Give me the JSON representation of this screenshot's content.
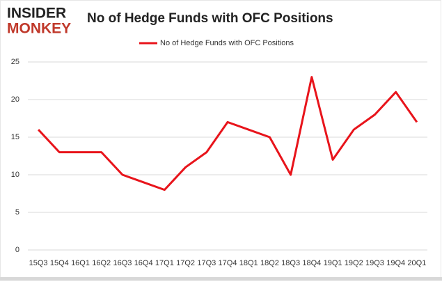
{
  "logo": {
    "top": "INSIDER",
    "bottom": "MONKEY"
  },
  "chart_data": {
    "type": "line",
    "title": "No of Hedge Funds with OFC Positions",
    "categories": [
      "15Q3",
      "15Q4",
      "16Q1",
      "16Q2",
      "16Q3",
      "16Q4",
      "17Q1",
      "17Q2",
      "17Q3",
      "17Q4",
      "18Q1",
      "18Q2",
      "18Q3",
      "18Q4",
      "19Q1",
      "19Q2",
      "19Q3",
      "19Q4",
      "20Q1"
    ],
    "series": [
      {
        "name": "No of Hedge Funds with OFC Positions",
        "color": "#e8141b",
        "values": [
          16,
          13,
          13,
          13,
          10,
          9,
          8,
          11,
          13,
          17,
          16,
          15,
          10,
          23,
          12,
          16,
          18,
          21,
          17
        ]
      }
    ],
    "ylim": [
      0,
      25
    ],
    "yticks": [
      0,
      5,
      10,
      15,
      20,
      25
    ],
    "grid": true,
    "legend": "top"
  }
}
